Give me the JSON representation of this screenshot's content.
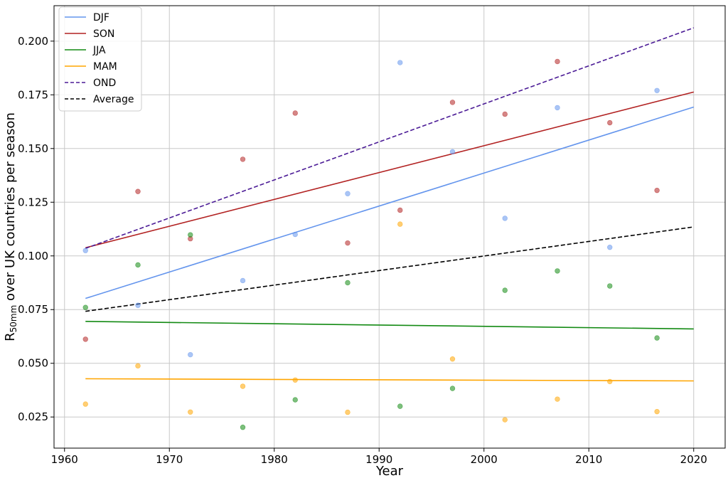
{
  "chart_data": {
    "type": "scatter",
    "xlabel": "Year",
    "ylabel": {
      "prefix": "R",
      "subscript": "50mm",
      "suffix": " over UK countries per season"
    },
    "xlim": [
      1959,
      2023
    ],
    "ylim": [
      0.0105,
      0.2165
    ],
    "xticks": [
      1960,
      1970,
      1980,
      1990,
      2000,
      2010,
      2020
    ],
    "yticks": [
      0.025,
      0.05,
      0.075,
      0.1,
      0.125,
      0.15,
      0.175,
      0.2
    ],
    "ytick_labels": [
      "0.025",
      "0.050",
      "0.075",
      "0.100",
      "0.125",
      "0.150",
      "0.175",
      "0.200"
    ],
    "grid": true,
    "legend": {
      "position": "top-left"
    },
    "series": [
      {
        "name": "DJF",
        "color": "#6495ed",
        "style": "solid",
        "points": [
          [
            1962,
            0.1025
          ],
          [
            1967,
            0.077
          ],
          [
            1972,
            0.054
          ],
          [
            1977,
            0.0885
          ],
          [
            1982,
            0.11
          ],
          [
            1987,
            0.129
          ],
          [
            1992,
            0.19
          ],
          [
            1997,
            0.1485
          ],
          [
            2002,
            0.1175
          ],
          [
            2007,
            0.169
          ],
          [
            2012,
            0.104
          ],
          [
            2016.5,
            0.177
          ]
        ],
        "trend": [
          [
            1962,
            0.0802
          ],
          [
            2020,
            0.1693
          ]
        ]
      },
      {
        "name": "SON",
        "color": "#b22222",
        "style": "solid",
        "points": [
          [
            1962,
            0.0612
          ],
          [
            1967,
            0.13
          ],
          [
            1972,
            0.108
          ],
          [
            1977,
            0.145
          ],
          [
            1982,
            0.1665
          ],
          [
            1987,
            0.106
          ],
          [
            1992,
            0.1213
          ],
          [
            1997,
            0.1715
          ],
          [
            2002,
            0.166
          ],
          [
            2007,
            0.1905
          ],
          [
            2012,
            0.162
          ],
          [
            2016.5,
            0.1305
          ]
        ],
        "trend": [
          [
            1962,
            0.1038
          ],
          [
            2020,
            0.1763
          ]
        ]
      },
      {
        "name": "JJA",
        "color": "#138a13",
        "style": "solid",
        "points": [
          [
            1962,
            0.076
          ],
          [
            1967,
            0.0958
          ],
          [
            1972,
            0.1098
          ],
          [
            1977,
            0.0202
          ],
          [
            1982,
            0.033
          ],
          [
            1987,
            0.0875
          ],
          [
            1992,
            0.03
          ],
          [
            1997,
            0.0383
          ],
          [
            2002,
            0.084
          ],
          [
            2007,
            0.093
          ],
          [
            2012,
            0.086
          ],
          [
            2016.5,
            0.0618
          ]
        ],
        "trend": [
          [
            1962,
            0.0695
          ],
          [
            2020,
            0.066
          ]
        ]
      },
      {
        "name": "MAM",
        "color": "#ffa500",
        "style": "solid",
        "points": [
          [
            1962,
            0.031
          ],
          [
            1967,
            0.0488
          ],
          [
            1972,
            0.0273
          ],
          [
            1977,
            0.0393
          ],
          [
            1982,
            0.0422
          ],
          [
            1987,
            0.0272
          ],
          [
            1992,
            0.1148
          ],
          [
            1997,
            0.052
          ],
          [
            2002,
            0.0237
          ],
          [
            2007,
            0.0333
          ],
          [
            2012,
            0.0415
          ],
          [
            2016.5,
            0.0275
          ]
        ],
        "trend": [
          [
            1962,
            0.0428
          ],
          [
            2020,
            0.0418
          ]
        ]
      },
      {
        "name": "OND",
        "color": "#4b1b96",
        "style": "dashed",
        "points": [],
        "trend": [
          [
            1962,
            0.1035
          ],
          [
            2020,
            0.2062
          ]
        ]
      },
      {
        "name": "Average",
        "color": "#000000",
        "style": "dashed",
        "points": [],
        "trend": [
          [
            1962,
            0.0742
          ],
          [
            2020,
            0.1135
          ]
        ]
      }
    ]
  }
}
